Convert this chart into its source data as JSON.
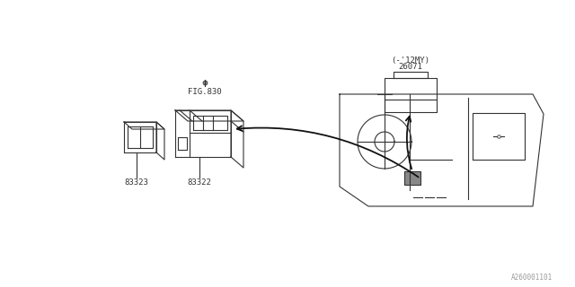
{
  "bg_color": "#ffffff",
  "line_color": "#333333",
  "text_color": "#333333",
  "fig_id": "A260001101",
  "fig_ref": "FIG.830",
  "part_83322": "83322",
  "part_83323": "83323",
  "part_26071": "26071",
  "part_26071_sub": "(-'12MY)"
}
